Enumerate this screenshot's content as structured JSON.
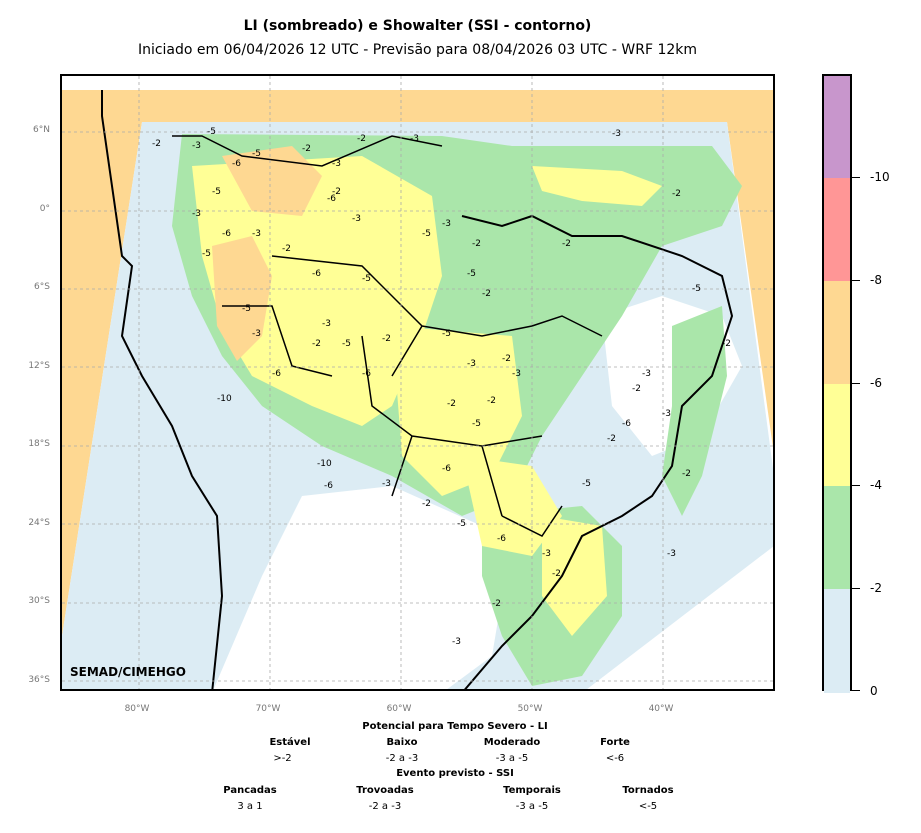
{
  "header": {
    "title": "LI (sombreado) e Showalter (SSI - contorno)",
    "subtitle": "Iniciado em 06/04/2026 12 UTC - Previsão para 08/04/2026 03 UTC - WRF 12km"
  },
  "map": {
    "credit": "SEMAD/CIMEHGO",
    "lat_labels": [
      "6°N",
      "0°",
      "6°S",
      "12°S",
      "18°S",
      "24°S",
      "30°S",
      "36°S"
    ],
    "lon_labels": [
      "80°W",
      "70°W",
      "60°W",
      "50°W",
      "40°W"
    ],
    "contour_labels": [
      "-2",
      "-3",
      "-5",
      "-6",
      "-5",
      "-2",
      "-3",
      "-2",
      "-3",
      "-2",
      "-5",
      "-3",
      "-6",
      "-5",
      "-3",
      "-2",
      "-3",
      "-5",
      "-6",
      "-2",
      "-3",
      "-5",
      "-2",
      "-6",
      "-5",
      "-3",
      "-5",
      "-6",
      "-2",
      "-3",
      "-5",
      "-6",
      "-2",
      "-5",
      "-3",
      "-10",
      "-10",
      "-6",
      "-3",
      "-2",
      "-5",
      "-6",
      "-3",
      "-2",
      "-3",
      "-5",
      "-2",
      "-6",
      "-2",
      "-3",
      "-2",
      "-3",
      "-2",
      "-3",
      "-2",
      "-5",
      "-2",
      "-3",
      "-2",
      "-6",
      "-5",
      "-2",
      "-2",
      "-3",
      "-2"
    ]
  },
  "colorbar": {
    "labels": [
      "-10",
      "-8",
      "-6",
      "-4",
      "-2",
      "0"
    ],
    "colors": [
      "#c896cc",
      "#ff9696",
      "#fed892",
      "#ffff96",
      "#aae6aa",
      "#dcecf4"
    ]
  },
  "legend": {
    "li_title": "Potencial para Tempo Severo - LI",
    "li_categories": [
      {
        "name": "Estável",
        "value": ">-2"
      },
      {
        "name": "Baixo",
        "value": "-2 a -3"
      },
      {
        "name": "Moderado",
        "value": "-3 a -5"
      },
      {
        "name": "Forte",
        "value": "<-6"
      }
    ],
    "ssi_title": "Evento previsto - SSI",
    "ssi_categories": [
      {
        "name": "Pancadas",
        "value": "3 a 1"
      },
      {
        "name": "Trovoadas",
        "value": "-2 a -3"
      },
      {
        "name": "Temporais",
        "value": "-3 a -5"
      },
      {
        "name": "Tornados",
        "value": "<-5"
      }
    ]
  }
}
